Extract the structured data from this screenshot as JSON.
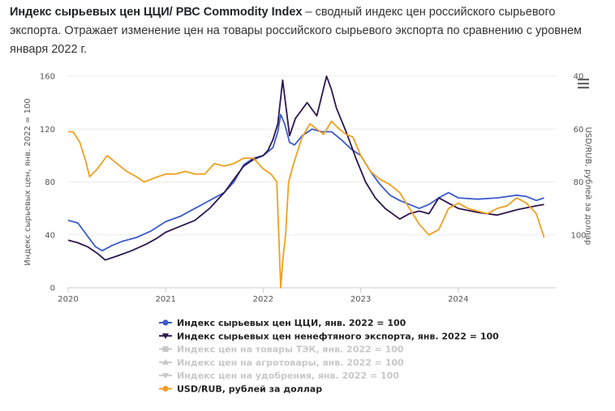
{
  "intro": {
    "title": "Индекс сырьевых цен ЦЦИ/ РВС Commodity Index",
    "text": " – сводный индекс цен российского сырьевого экспорта. Отражает изменение цен на товары российского сырьевого экспорта по сравнению с уровнем января 2022 г."
  },
  "menu_icon": "hamburger-menu-icon",
  "chart_data": {
    "type": "line",
    "title": "",
    "xlabel": "",
    "ylabel": "Индекс сырьевых цен, янв. 2022 = 100",
    "ylabel_right": "USD/RUB, рублей за доллар",
    "xlim": [
      2020.0,
      2025.0
    ],
    "ylim": [
      0,
      160
    ],
    "ylim_right": [
      120,
      40
    ],
    "right_axis_reversed": true,
    "x_ticks": [
      "2020",
      "2021",
      "2022",
      "2023",
      "2024"
    ],
    "y_ticks": [
      "0",
      "40",
      "80",
      "120",
      "160"
    ],
    "y_ticks_right": [
      "40",
      "60",
      "80",
      "100"
    ],
    "grid": true,
    "legend_position": "bottom",
    "series": [
      {
        "name": "Индекс сырьевых цен ЦЦИ, янв. 2022 = 100",
        "axis": "left",
        "color": "#3b5bcc",
        "visible": true,
        "marker": "circle",
        "x": [
          2020.0,
          2020.1,
          2020.2,
          2020.28,
          2020.35,
          2020.45,
          2020.55,
          2020.7,
          2020.85,
          2021.0,
          2021.15,
          2021.3,
          2021.45,
          2021.6,
          2021.7,
          2021.8,
          2021.9,
          2022.0,
          2022.05,
          2022.1,
          2022.15,
          2022.18,
          2022.22,
          2022.27,
          2022.32,
          2022.4,
          2022.5,
          2022.6,
          2022.7,
          2022.8,
          2022.9,
          2023.0,
          2023.1,
          2023.2,
          2023.3,
          2023.4,
          2023.5,
          2023.6,
          2023.7,
          2023.8,
          2023.9,
          2024.0,
          2024.2,
          2024.4,
          2024.6,
          2024.7,
          2024.8,
          2024.88
        ],
        "y": [
          51,
          49,
          39,
          31,
          28,
          32,
          35,
          38,
          43,
          50,
          54,
          60,
          66,
          72,
          80,
          93,
          98,
          100,
          103,
          106,
          118,
          131,
          124,
          110,
          108,
          115,
          120,
          118,
          118,
          112,
          105,
          100,
          88,
          78,
          70,
          66,
          63,
          60,
          63,
          68,
          72,
          68,
          67,
          68,
          70,
          69,
          66,
          68
        ]
      },
      {
        "name": "Индекс сырьевых цен ненефтяного экспорта, янв. 2022 = 100",
        "axis": "left",
        "color": "#2d1650",
        "visible": true,
        "marker": "triangle-down",
        "x": [
          2020.0,
          2020.1,
          2020.2,
          2020.3,
          2020.38,
          2020.5,
          2020.65,
          2020.8,
          2020.9,
          2021.0,
          2021.1,
          2021.3,
          2021.45,
          2021.6,
          2021.7,
          2021.8,
          2021.9,
          2022.0,
          2022.05,
          2022.1,
          2022.15,
          2022.2,
          2022.27,
          2022.33,
          2022.45,
          2022.55,
          2022.65,
          2022.7,
          2022.75,
          2022.85,
          2022.95,
          2023.05,
          2023.15,
          2023.25,
          2023.4,
          2023.5,
          2023.6,
          2023.7,
          2023.8,
          2023.9,
          2024.0,
          2024.2,
          2024.4,
          2024.6,
          2024.8,
          2024.88
        ],
        "y": [
          36,
          34,
          31,
          26,
          21,
          24,
          28,
          33,
          37,
          42,
          45,
          51,
          60,
          72,
          82,
          92,
          97,
          100,
          104,
          112,
          124,
          157,
          115,
          128,
          140,
          130,
          160,
          150,
          136,
          118,
          98,
          80,
          68,
          60,
          52,
          56,
          58,
          56,
          68,
          64,
          60,
          57,
          55,
          59,
          62,
          63
        ]
      },
      {
        "name": "Индекс цен на товары ТЭК, янв. 2022 = 100",
        "axis": "left",
        "color": "#c8c8c8",
        "visible": false,
        "marker": "square",
        "x": [],
        "y": []
      },
      {
        "name": "Индекс цен на агротовары, янв. 2022 = 100",
        "axis": "left",
        "color": "#c8c8c8",
        "visible": false,
        "marker": "triangle",
        "x": [],
        "y": []
      },
      {
        "name": "Индекс цен на удобрения, янв. 2022 = 100",
        "axis": "left",
        "color": "#c8c8c8",
        "visible": false,
        "marker": "triangle-down",
        "x": [],
        "y": []
      },
      {
        "name": "USD/RUB, рублей за доллар",
        "axis": "right",
        "color": "#f0a020",
        "visible": true,
        "marker": "circle",
        "x": [
          2020.0,
          2020.05,
          2020.12,
          2020.18,
          2020.22,
          2020.3,
          2020.4,
          2020.5,
          2020.6,
          2020.7,
          2020.78,
          2020.85,
          2020.92,
          2021.0,
          2021.1,
          2021.2,
          2021.3,
          2021.4,
          2021.5,
          2021.6,
          2021.7,
          2021.8,
          2021.9,
          2022.0,
          2022.08,
          2022.14,
          2022.18,
          2022.2,
          2022.23,
          2022.26,
          2022.32,
          2022.4,
          2022.48,
          2022.55,
          2022.62,
          2022.7,
          2022.78,
          2022.85,
          2022.92,
          2023.0,
          2023.1,
          2023.2,
          2023.3,
          2023.4,
          2023.5,
          2023.6,
          2023.7,
          2023.8,
          2023.9,
          2024.0,
          2024.1,
          2024.2,
          2024.3,
          2024.4,
          2024.5,
          2024.6,
          2024.7,
          2024.8,
          2024.88
        ],
        "y": [
          61,
          61,
          65,
          72,
          78,
          75,
          70,
          73,
          76,
          78,
          80,
          79,
          78,
          77,
          77,
          76,
          77,
          77,
          73,
          74,
          73,
          71,
          71,
          75,
          77,
          80,
          120,
          110,
          100,
          80,
          72,
          63,
          58,
          60,
          62,
          57,
          60,
          62,
          63,
          70,
          76,
          79,
          81,
          84,
          90,
          96,
          100,
          98,
          90,
          88,
          90,
          91,
          92,
          90,
          89,
          86,
          88,
          92,
          101
        ]
      }
    ]
  }
}
